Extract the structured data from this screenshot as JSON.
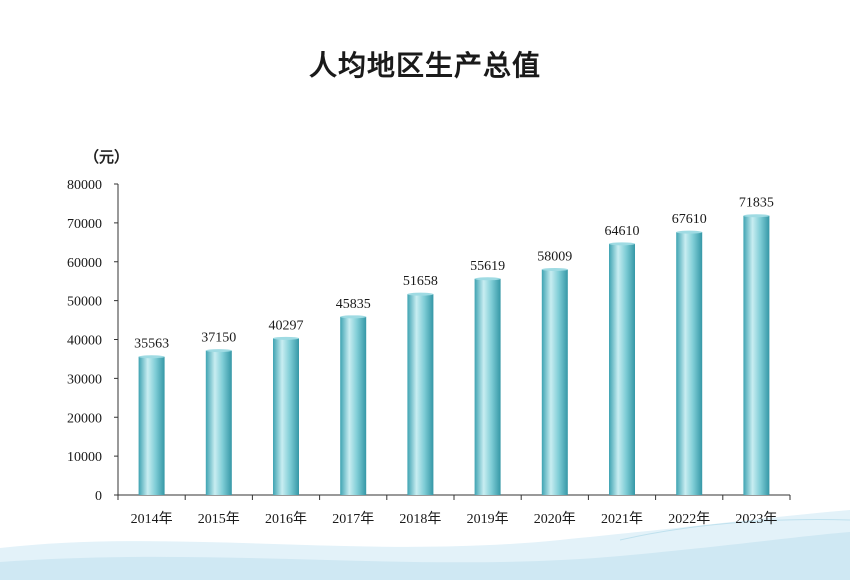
{
  "title": "人均地区生产总值",
  "unit_label": "（元）",
  "colors": {
    "bar_light": "#c8edf1",
    "bar_mid": "#7fcdd6",
    "bar_dark": "#3ea3b2",
    "axis": "#333333",
    "wave": "#d7edf6"
  },
  "chart_data": {
    "type": "bar",
    "title": "人均地区生产总值",
    "ylabel": "（元）",
    "xlabel": "",
    "ylim": [
      0,
      80000
    ],
    "yticks": [
      0,
      10000,
      20000,
      30000,
      40000,
      50000,
      60000,
      70000,
      80000
    ],
    "categories": [
      "2014年",
      "2015年",
      "2016年",
      "2017年",
      "2018年",
      "2019年",
      "2020年",
      "2021年",
      "2022年",
      "2023年"
    ],
    "values": [
      35563,
      37150,
      40297,
      45835,
      51658,
      55619,
      58009,
      64610,
      67610,
      71835
    ],
    "grid": false,
    "legend": "none"
  }
}
